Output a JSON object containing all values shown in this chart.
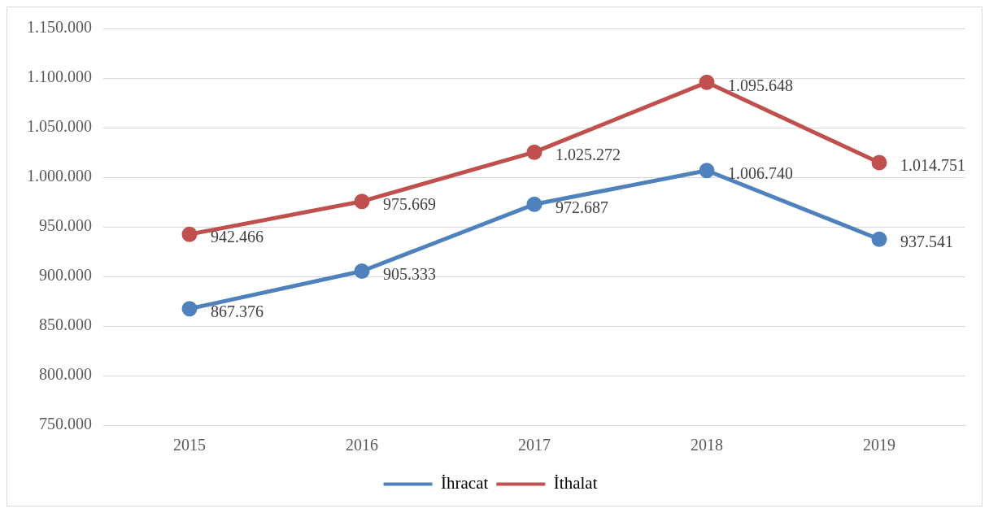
{
  "chart_data": {
    "type": "line",
    "categories": [
      "2015",
      "2016",
      "2017",
      "2018",
      "2019"
    ],
    "series": [
      {
        "name": "İhracat",
        "color": "#4f81bd",
        "values": [
          867376,
          905333,
          972687,
          1006740,
          937541
        ],
        "value_labels": [
          "867.376",
          "905.333",
          "972.687",
          "1.006.740",
          "937.541"
        ]
      },
      {
        "name": "İthalat",
        "color": "#c0504d",
        "values": [
          942466,
          975669,
          1025272,
          1095648,
          1014751
        ],
        "value_labels": [
          "942.466",
          "975.669",
          "1.025.272",
          "1.095.648",
          "1.014.751"
        ]
      }
    ],
    "ylim": [
      750000,
      1150000
    ],
    "yticks": [
      {
        "value": 750000,
        "label": "750.000"
      },
      {
        "value": 800000,
        "label": "800.000"
      },
      {
        "value": 850000,
        "label": "850.000"
      },
      {
        "value": 900000,
        "label": "900.000"
      },
      {
        "value": 950000,
        "label": "950.000"
      },
      {
        "value": 1000000,
        "label": "1.000.000"
      },
      {
        "value": 1050000,
        "label": "1.050.000"
      },
      {
        "value": 1100000,
        "label": "1.100.000"
      },
      {
        "value": 1150000,
        "label": "1.150.000"
      }
    ],
    "grid": "y",
    "legend": "bottom",
    "marker": "circle",
    "line_style": "solid"
  }
}
